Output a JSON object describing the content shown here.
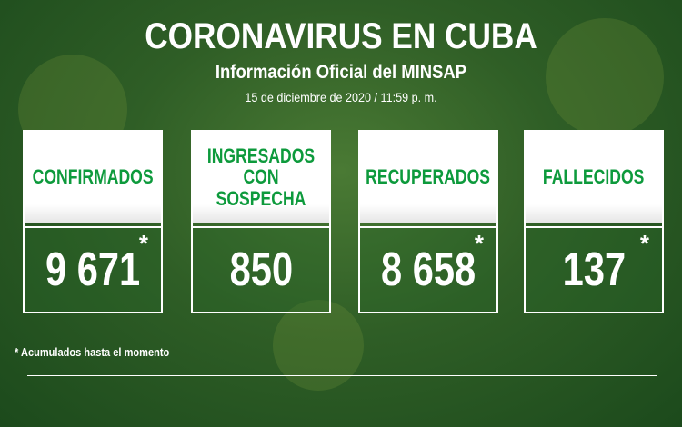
{
  "header": {
    "title": "CORONAVIRUS EN CUBA",
    "subtitle": "Información Oficial del MINSAP",
    "date": "15 de diciembre de 2020 / 11:59 p. m."
  },
  "cards": [
    {
      "label": "CONFIRMADOS",
      "value": "9 671",
      "star": "*"
    },
    {
      "label": "INGRESADOS CON SOSPECHA",
      "value": "850",
      "star": ""
    },
    {
      "label": "RECUPERADOS",
      "value": "8 658",
      "star": "*"
    },
    {
      "label": "FALLECIDOS",
      "value": "137",
      "star": "*"
    }
  ],
  "footnote": "* Acumulados hasta el momento",
  "colors": {
    "label": "#0d9a3c",
    "background": "#2f5e26"
  }
}
